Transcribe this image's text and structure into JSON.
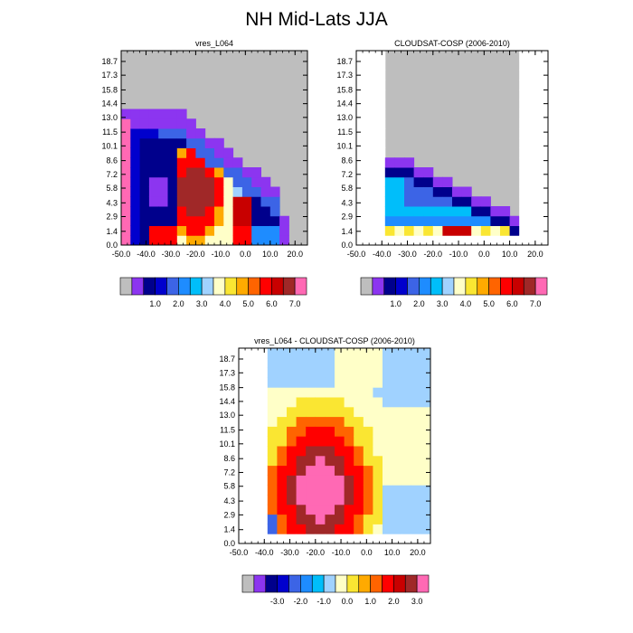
{
  "title": "NH Mid-Lats JJA",
  "colors": {
    "missing": "#bebebe",
    "palette_abs": [
      "#8c35f0",
      "#00008c",
      "#0000cd",
      "#3c64e6",
      "#1e8cff",
      "#00befa",
      "#a0d2ff",
      "#ffffc8",
      "#fae632",
      "#ffaa00",
      "#ff6400",
      "#ff0000",
      "#c80000",
      "#a02828",
      "#ff69b4"
    ],
    "palette_diff": [
      "#8c35f0",
      "#00008c",
      "#0000cd",
      "#3c64e6",
      "#1e8cff",
      "#00befa",
      "#a0d2ff",
      "#ffffc8",
      "#fae632",
      "#ffaa00",
      "#ff6400",
      "#ff0000",
      "#c80000",
      "#a02828",
      "#ff69b4"
    ]
  },
  "chart_data": [
    {
      "type": "heatmap",
      "title": "vres_L064",
      "x_ticks": [
        "-50.0",
        "-40.0",
        "-30.0",
        "-20.0",
        "-10.0",
        "0.0",
        "10.0",
        "20.0"
      ],
      "y_ticks": [
        "0.0",
        "1.4",
        "2.9",
        "4.3",
        "5.8",
        "7.2",
        "8.6",
        "10.1",
        "11.5",
        "13.0",
        "14.4",
        "15.8",
        "17.3",
        "18.7"
      ],
      "xlim": [
        -50,
        25
      ],
      "ylim": [
        0,
        19.8
      ],
      "colorbar_labels": [
        "1.0",
        "2.0",
        "3.0",
        "4.0",
        "5.0",
        "6.0",
        "7.0"
      ],
      "levels": [
        0.5,
        1.0,
        1.5,
        2.0,
        2.5,
        3.0,
        3.5,
        4.0,
        4.5,
        5.0,
        5.5,
        6.0,
        6.5,
        7.0
      ],
      "missing_color_box": true
    },
    {
      "type": "heatmap",
      "title": "CLOUDSAT-COSP (2006-2010)",
      "x_ticks": [
        "-50.0",
        "-40.0",
        "-30.0",
        "-20.0",
        "-10.0",
        "0.0",
        "10.0",
        "20.0"
      ],
      "y_ticks": [
        "0.0",
        "1.4",
        "2.9",
        "4.3",
        "5.8",
        "7.2",
        "8.6",
        "10.1",
        "11.5",
        "13.0",
        "14.4",
        "15.8",
        "17.3",
        "18.7"
      ],
      "xlim": [
        -50,
        25
      ],
      "ylim": [
        0,
        19.8
      ],
      "colorbar_labels": [
        "1.0",
        "2.0",
        "3.0",
        "4.0",
        "5.0",
        "6.0",
        "7.0"
      ],
      "levels": [
        0.5,
        1.0,
        1.5,
        2.0,
        2.5,
        3.0,
        3.5,
        4.0,
        4.5,
        5.0,
        5.5,
        6.0,
        6.5,
        7.0
      ],
      "missing_color_box": true
    },
    {
      "type": "heatmap",
      "title": "vres_L064 - CLOUDSAT-COSP (2006-2010)",
      "x_ticks": [
        "-50.0",
        "-40.0",
        "-30.0",
        "-20.0",
        "-10.0",
        "0.0",
        "10.0",
        "20.0"
      ],
      "y_ticks": [
        "0.0",
        "1.4",
        "2.9",
        "4.3",
        "5.8",
        "7.2",
        "8.6",
        "10.1",
        "11.5",
        "13.0",
        "14.4",
        "15.8",
        "17.3",
        "18.7"
      ],
      "xlim": [
        -50,
        25
      ],
      "ylim": [
        0,
        19.8
      ],
      "colorbar_labels": [
        "-3.0",
        "-2.0",
        "-1.0",
        "0.0",
        "1.0",
        "2.0",
        "3.0"
      ],
      "levels": [
        -3.5,
        -3.0,
        -2.5,
        -2.0,
        -1.5,
        -1.0,
        -0.5,
        0.0,
        0.5,
        1.0,
        1.5,
        2.0,
        2.5,
        3.0
      ],
      "missing_color_box": true
    }
  ]
}
